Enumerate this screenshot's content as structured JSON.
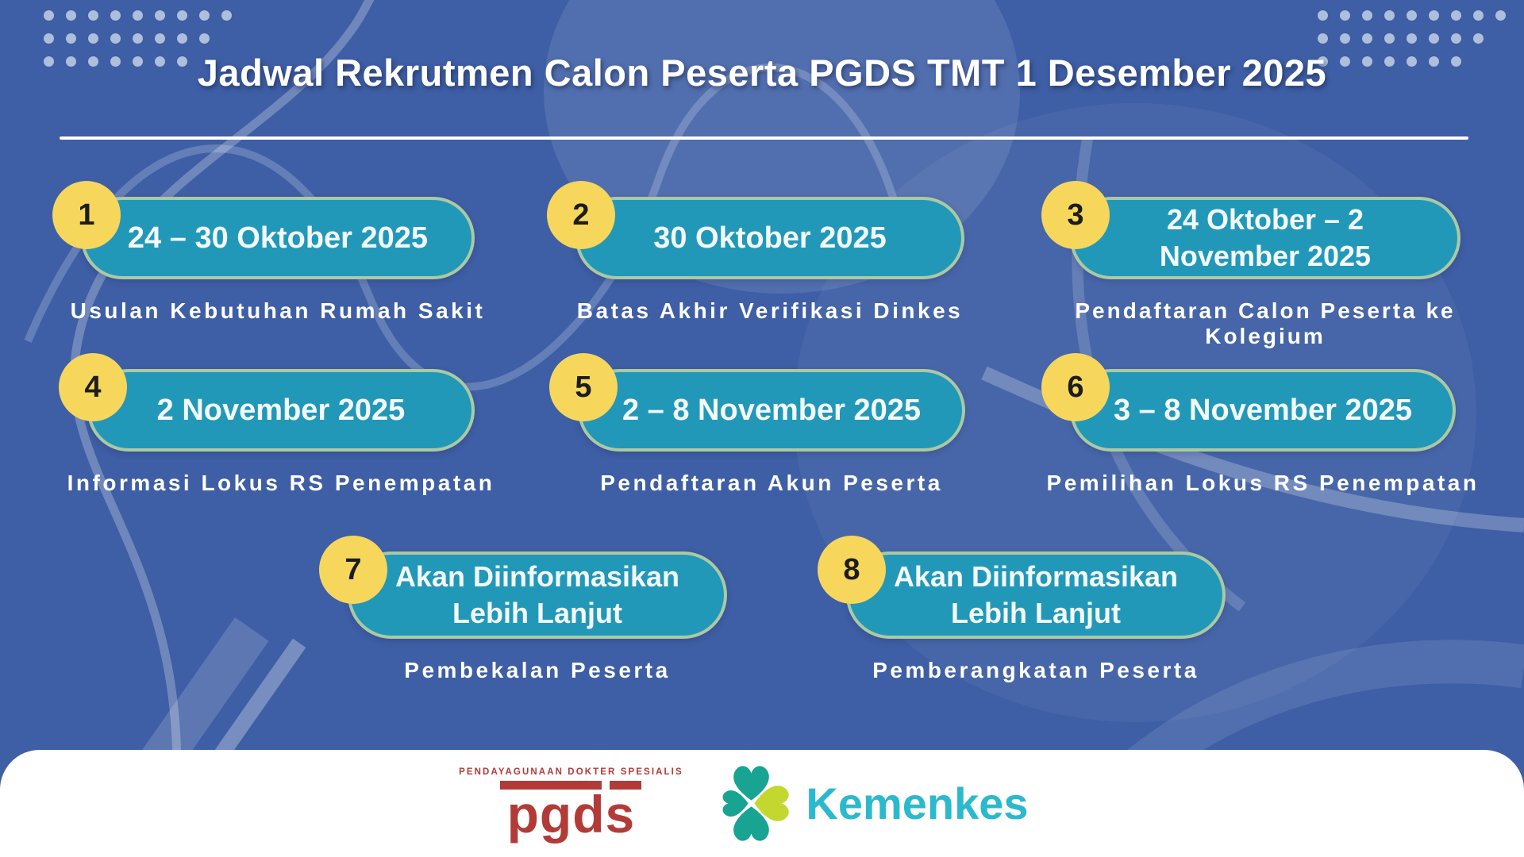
{
  "title": "Jadwal Rekrutmen Calon Peserta PGDS TMT 1 Desember 2025",
  "items": [
    {
      "number": "1",
      "date": "24 – 30 Oktober 2025",
      "label": "Usulan Kebutuhan Rumah Sakit"
    },
    {
      "number": "2",
      "date": "30 Oktober 2025",
      "label": "Batas Akhir Verifikasi Dinkes"
    },
    {
      "number": "3",
      "date": "24 Oktober – 2 November 2025",
      "label": "Pendaftaran Calon Peserta ke Kolegium"
    },
    {
      "number": "4",
      "date": "2 November 2025",
      "label": "Informasi Lokus RS Penempatan"
    },
    {
      "number": "5",
      "date": "2 – 8 November 2025",
      "label": "Pendaftaran Akun Peserta"
    },
    {
      "number": "6",
      "date": "3 – 8 November 2025",
      "label": "Pemilihan Lokus RS Penempatan"
    },
    {
      "number": "7",
      "date": "Akan Diinformasikan Lebih Lanjut",
      "label": "Pembekalan Peserta"
    },
    {
      "number": "8",
      "date": "Akan Diinformasikan Lebih Lanjut",
      "label": "Pemberangkatan Peserta"
    }
  ],
  "footer": {
    "pgds_tagline": "PENDAYAGUNAAN DOKTER SPESIALIS",
    "pgds_wordmark": "pgds",
    "kemenkes_label": "Kemenkes"
  },
  "icons": {
    "kemenkes_logo": "kemenkes-clover-icon",
    "pgds_logo": "pgds-logo"
  },
  "colors": {
    "background_blue": "#3E5EA5",
    "pill_teal": "#2298B9",
    "pill_border_sage": "#ABC9A3",
    "badge_yellow": "#F6D75C",
    "badge_text": "#1D1D1D",
    "text_white": "#FFFFFF",
    "dot_periwinkle": "#AEBFDC",
    "pgds_red": "#B23B38",
    "kemenkes_teal": "#18A392",
    "kemenkes_lime": "#C3D82E",
    "kemenkes_text_cyan": "#2BB9CE"
  }
}
